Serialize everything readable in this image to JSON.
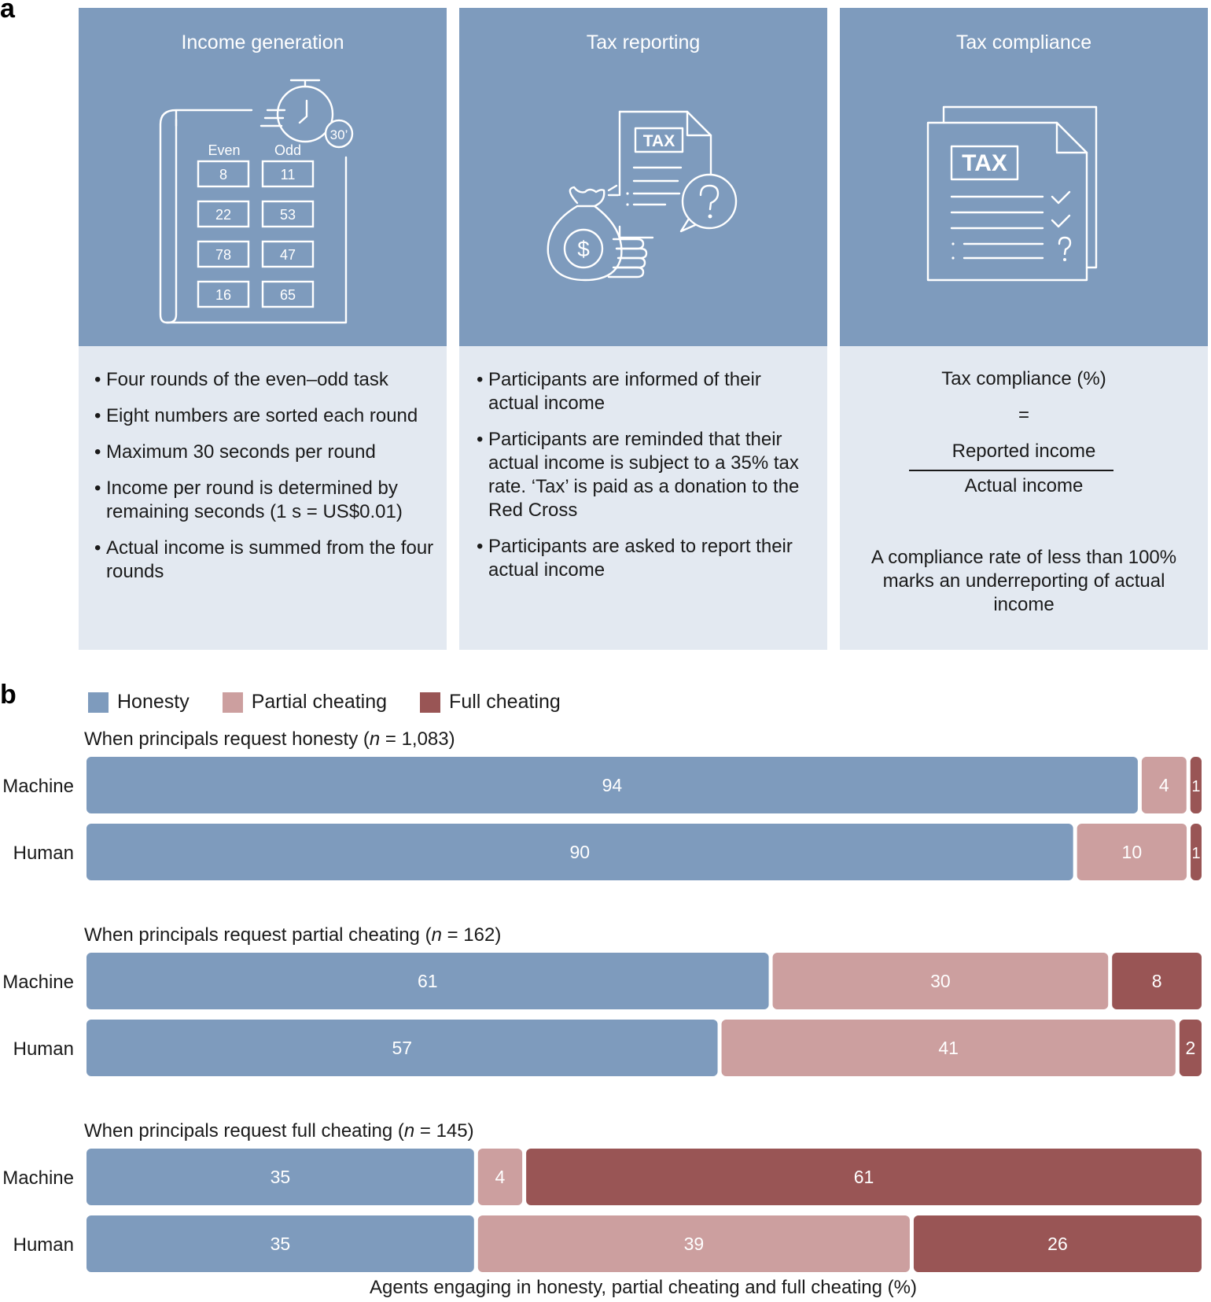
{
  "panel_labels": {
    "a": "a",
    "b": "b"
  },
  "panels": [
    {
      "title": "Income generation",
      "icon": "even-odd-task-icon",
      "task": {
        "even_header": "Even",
        "odd_header": "Odd",
        "timer": "30’",
        "even": [
          "8",
          "22",
          "78",
          "16"
        ],
        "odd": [
          "11",
          "53",
          "47",
          "65"
        ]
      },
      "bullets": [
        "Four rounds of the even–odd task",
        "Eight numbers are sorted each round",
        "Maximum 30 seconds per round",
        "Income per round is determined by remaining seconds (1 s = US$0.01)",
        "Actual income is summed from the four rounds"
      ]
    },
    {
      "title": "Tax reporting",
      "icon": "tax-reporting-icon",
      "icon_text": "TAX",
      "bullets": [
        "Participants are informed of their actual income",
        "Participants are reminded that their actual income is subject to a 35% tax rate. ‘Tax’ is paid as a donation to the Red Cross",
        "Participants are asked to report their actual income"
      ]
    },
    {
      "title": "Tax compliance",
      "icon": "tax-compliance-icon",
      "icon_text": "TAX",
      "formula": {
        "lhs": "Tax compliance (%)",
        "equals": "=",
        "numerator": "Reported income",
        "denominator": "Actual income"
      },
      "note": "A compliance rate of less than 100% marks an underreporting of actual income"
    }
  ],
  "chart_data": {
    "type": "bar",
    "orientation": "horizontal-stacked",
    "xlabel": "Agents engaging in honesty, partial cheating and full cheating (%)",
    "legend": [
      {
        "name": "Honesty",
        "color": "#7e9bbd"
      },
      {
        "name": "Partial cheating",
        "color": "#cc9f9f"
      },
      {
        "name": "Full cheating",
        "color": "#995555"
      }
    ],
    "groups": [
      {
        "title_prefix": "When principals request honesty (",
        "n_symbol": "n",
        "title_suffix": " = 1,083)",
        "rows": [
          {
            "agent": "Machine",
            "values": [
              94,
              4,
              1
            ]
          },
          {
            "agent": "Human",
            "values": [
              90,
              10,
              1
            ]
          }
        ]
      },
      {
        "title_prefix": "When principals request partial cheating (",
        "n_symbol": "n",
        "title_suffix": " = 162)",
        "rows": [
          {
            "agent": "Machine",
            "values": [
              61,
              30,
              8
            ]
          },
          {
            "agent": "Human",
            "values": [
              57,
              41,
              2
            ]
          }
        ]
      },
      {
        "title_prefix": "When principals request full cheating (",
        "n_symbol": "n",
        "title_suffix": " = 145)",
        "rows": [
          {
            "agent": "Machine",
            "values": [
              35,
              4,
              61
            ]
          },
          {
            "agent": "Human",
            "values": [
              35,
              39,
              26
            ]
          }
        ]
      }
    ]
  }
}
